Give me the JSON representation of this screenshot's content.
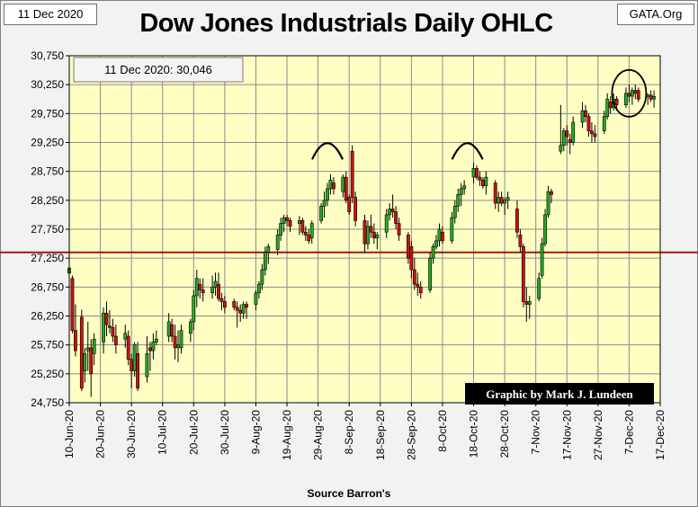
{
  "header": {
    "date": "11 Dec 2020",
    "site": "GATA.Org",
    "title": "Dow Jones Industrials Daily OHLC",
    "source": "Source Barron's"
  },
  "chart_data": {
    "type": "candlestick",
    "title": "Dow Jones Industrials Daily OHLC",
    "annotation_box": "11 Dec 2020:  30,046",
    "credit": "Graphic by Mark J. Lundeen",
    "ylim": [
      24750,
      30750
    ],
    "ytick_values": [
      24750,
      25250,
      25750,
      26250,
      26750,
      27250,
      27750,
      28250,
      28750,
      29250,
      29750,
      30250,
      30750
    ],
    "ytick_labels": [
      "24,750",
      "25,250",
      "25,750",
      "26,250",
      "26,750",
      "27,250",
      "27,750",
      "28,250",
      "28,750",
      "29,250",
      "29,750",
      "30,250",
      "30,750"
    ],
    "xlim_days": [
      0,
      190
    ],
    "xtick_days": [
      0,
      10,
      20,
      30,
      40,
      50,
      60,
      70,
      80,
      90,
      100,
      110,
      120,
      130,
      140,
      150,
      160,
      170,
      180,
      190
    ],
    "xtick_labels": [
      "10-Jun-20",
      "20-Jun-20",
      "30-Jun-20",
      "10-Jul-20",
      "20-Jul-20",
      "30-Jul-20",
      "9-Aug-20",
      "19-Aug-20",
      "29-Aug-20",
      "8-Sep-20",
      "18-Sep-20",
      "28-Sep-20",
      "8-Oct-20",
      "18-Oct-20",
      "28-Oct-20",
      "7-Nov-20",
      "17-Nov-20",
      "27-Nov-20",
      "7-Dec-20",
      "17-Dec-20"
    ],
    "reference_line": {
      "value": 27350,
      "color": "#a01818"
    },
    "colors": {
      "up": "#22aa22",
      "down": "#cc1111",
      "wick": "#000000",
      "plot_bg": "#ffffc4",
      "grid": "#8a8a8a"
    },
    "peaks_marked": [
      83,
      128
    ],
    "circled_region_day": 180,
    "candles": [
      {
        "d": 0,
        "o": 26989,
        "h": 27250,
        "l": 26950,
        "c": 27080
      },
      {
        "d": 1,
        "o": 26900,
        "h": 26950,
        "l": 25950,
        "c": 26000
      },
      {
        "d": 2,
        "o": 26000,
        "h": 26450,
        "l": 25550,
        "c": 25650
      },
      {
        "d": 4,
        "o": 26230,
        "h": 26360,
        "l": 24950,
        "c": 25000
      },
      {
        "d": 5,
        "o": 25300,
        "h": 25700,
        "l": 25100,
        "c": 25600
      },
      {
        "d": 6,
        "o": 25650,
        "h": 26150,
        "l": 25300,
        "c": 25700
      },
      {
        "d": 7,
        "o": 25700,
        "h": 25850,
        "l": 24850,
        "c": 25250
      },
      {
        "d": 8,
        "o": 25600,
        "h": 25950,
        "l": 25400,
        "c": 25850
      },
      {
        "d": 11,
        "o": 25800,
        "h": 26400,
        "l": 25600,
        "c": 26300
      },
      {
        "d": 12,
        "o": 26300,
        "h": 26500,
        "l": 25900,
        "c": 26100
      },
      {
        "d": 13,
        "o": 26080,
        "h": 26350,
        "l": 25950,
        "c": 26050
      },
      {
        "d": 14,
        "o": 26050,
        "h": 26200,
        "l": 25800,
        "c": 25900
      },
      {
        "d": 15,
        "o": 25900,
        "h": 26100,
        "l": 25600,
        "c": 25750
      },
      {
        "d": 18,
        "o": 25850,
        "h": 26100,
        "l": 25700,
        "c": 25950
      },
      {
        "d": 19,
        "o": 25900,
        "h": 26000,
        "l": 25400,
        "c": 25500
      },
      {
        "d": 20,
        "o": 25500,
        "h": 25600,
        "l": 25000,
        "c": 25300
      },
      {
        "d": 21,
        "o": 25300,
        "h": 25800,
        "l": 25200,
        "c": 25750
      },
      {
        "d": 22,
        "o": 25600,
        "h": 25800,
        "l": 24950,
        "c": 25000
      },
      {
        "d": 25,
        "o": 25200,
        "h": 25900,
        "l": 25100,
        "c": 25600
      },
      {
        "d": 26,
        "o": 25700,
        "h": 25800,
        "l": 25300,
        "c": 25650
      },
      {
        "d": 27,
        "o": 25650,
        "h": 25950,
        "l": 25500,
        "c": 25800
      },
      {
        "d": 28,
        "o": 25800,
        "h": 26000,
        "l": 25750,
        "c": 25850
      },
      {
        "d": 32,
        "o": 25900,
        "h": 26300,
        "l": 25800,
        "c": 26150
      },
      {
        "d": 33,
        "o": 26100,
        "h": 26200,
        "l": 25800,
        "c": 25900
      },
      {
        "d": 34,
        "o": 25900,
        "h": 26100,
        "l": 25500,
        "c": 25700
      },
      {
        "d": 35,
        "o": 25700,
        "h": 26000,
        "l": 25450,
        "c": 25750
      },
      {
        "d": 36,
        "o": 25700,
        "h": 26100,
        "l": 25600,
        "c": 26000
      },
      {
        "d": 39,
        "o": 25950,
        "h": 26200,
        "l": 25800,
        "c": 26150
      },
      {
        "d": 40,
        "o": 26150,
        "h": 26700,
        "l": 26000,
        "c": 26600
      },
      {
        "d": 41,
        "o": 26600,
        "h": 27050,
        "l": 26400,
        "c": 26900
      },
      {
        "d": 42,
        "o": 26800,
        "h": 26900,
        "l": 26550,
        "c": 26700
      },
      {
        "d": 43,
        "o": 26700,
        "h": 26900,
        "l": 26500,
        "c": 26650
      },
      {
        "d": 46,
        "o": 26650,
        "h": 26950,
        "l": 26550,
        "c": 26750
      },
      {
        "d": 47,
        "o": 26750,
        "h": 27000,
        "l": 26600,
        "c": 26850
      },
      {
        "d": 48,
        "o": 26800,
        "h": 27000,
        "l": 26500,
        "c": 26550
      },
      {
        "d": 49,
        "o": 26550,
        "h": 26650,
        "l": 26350,
        "c": 26500
      },
      {
        "d": 50,
        "o": 26500,
        "h": 26600,
        "l": 26300,
        "c": 26400
      },
      {
        "d": 53,
        "o": 26500,
        "h": 26550,
        "l": 26350,
        "c": 26400
      },
      {
        "d": 54,
        "o": 26400,
        "h": 26500,
        "l": 26050,
        "c": 26350
      },
      {
        "d": 55,
        "o": 26350,
        "h": 26450,
        "l": 26150,
        "c": 26300
      },
      {
        "d": 56,
        "o": 26300,
        "h": 26500,
        "l": 26200,
        "c": 26450
      },
      {
        "d": 57,
        "o": 26450,
        "h": 26500,
        "l": 26200,
        "c": 26400
      },
      {
        "d": 60,
        "o": 26450,
        "h": 26700,
        "l": 26350,
        "c": 26650
      },
      {
        "d": 61,
        "o": 26650,
        "h": 26850,
        "l": 26550,
        "c": 26800
      },
      {
        "d": 62,
        "o": 26800,
        "h": 27150,
        "l": 26700,
        "c": 27050
      },
      {
        "d": 63,
        "o": 27050,
        "h": 27450,
        "l": 26950,
        "c": 27350
      },
      {
        "d": 64,
        "o": 27350,
        "h": 27500,
        "l": 27150,
        "c": 27450
      },
      {
        "d": 67,
        "o": 27400,
        "h": 27750,
        "l": 27300,
        "c": 27650
      },
      {
        "d": 68,
        "o": 27650,
        "h": 27950,
        "l": 27550,
        "c": 27850
      },
      {
        "d": 69,
        "o": 27850,
        "h": 28000,
        "l": 27700,
        "c": 27950
      },
      {
        "d": 70,
        "o": 27950,
        "h": 28000,
        "l": 27800,
        "c": 27900
      },
      {
        "d": 71,
        "o": 27900,
        "h": 27950,
        "l": 27700,
        "c": 27800
      },
      {
        "d": 74,
        "o": 27850,
        "h": 27980,
        "l": 27650,
        "c": 27900
      },
      {
        "d": 75,
        "o": 27900,
        "h": 27950,
        "l": 27650,
        "c": 27700
      },
      {
        "d": 76,
        "o": 27700,
        "h": 27800,
        "l": 27550,
        "c": 27650
      },
      {
        "d": 77,
        "o": 27650,
        "h": 27750,
        "l": 27500,
        "c": 27550
      },
      {
        "d": 78,
        "o": 27600,
        "h": 27900,
        "l": 27500,
        "c": 27850
      },
      {
        "d": 81,
        "o": 27900,
        "h": 28200,
        "l": 27850,
        "c": 28150
      },
      {
        "d": 82,
        "o": 28150,
        "h": 28400,
        "l": 27950,
        "c": 28250
      },
      {
        "d": 83,
        "o": 28250,
        "h": 28550,
        "l": 28150,
        "c": 28450
      },
      {
        "d": 84,
        "o": 28450,
        "h": 28700,
        "l": 28350,
        "c": 28600
      },
      {
        "d": 85,
        "o": 28550,
        "h": 28650,
        "l": 28350,
        "c": 28450
      },
      {
        "d": 88,
        "o": 28400,
        "h": 28700,
        "l": 28300,
        "c": 28650
      },
      {
        "d": 89,
        "o": 28650,
        "h": 28750,
        "l": 28200,
        "c": 28250
      },
      {
        "d": 90,
        "o": 28300,
        "h": 28350,
        "l": 28000,
        "c": 28050
      },
      {
        "d": 91,
        "o": 29100,
        "h": 29200,
        "l": 28200,
        "c": 28300
      },
      {
        "d": 92,
        "o": 28300,
        "h": 28400,
        "l": 27800,
        "c": 27900
      },
      {
        "d": 95,
        "o": 27900,
        "h": 28000,
        "l": 27350,
        "c": 27500
      },
      {
        "d": 96,
        "o": 27500,
        "h": 27900,
        "l": 27400,
        "c": 27800
      },
      {
        "d": 97,
        "o": 27800,
        "h": 28000,
        "l": 27600,
        "c": 27700
      },
      {
        "d": 98,
        "o": 27700,
        "h": 27850,
        "l": 27500,
        "c": 27600
      },
      {
        "d": 99,
        "o": 27600,
        "h": 27700,
        "l": 27400,
        "c": 27650
      },
      {
        "d": 102,
        "o": 27700,
        "h": 28100,
        "l": 27600,
        "c": 28000
      },
      {
        "d": 103,
        "o": 28000,
        "h": 28200,
        "l": 27900,
        "c": 28100
      },
      {
        "d": 104,
        "o": 28100,
        "h": 28350,
        "l": 27950,
        "c": 28050
      },
      {
        "d": 105,
        "o": 28050,
        "h": 28150,
        "l": 27750,
        "c": 27850
      },
      {
        "d": 106,
        "o": 27850,
        "h": 27950,
        "l": 27550,
        "c": 27650
      },
      {
        "d": 109,
        "o": 27650,
        "h": 27700,
        "l": 27150,
        "c": 27250
      },
      {
        "d": 110,
        "o": 27450,
        "h": 27550,
        "l": 26900,
        "c": 27050
      },
      {
        "d": 111,
        "o": 27050,
        "h": 27250,
        "l": 26700,
        "c": 26800
      },
      {
        "d": 112,
        "o": 26800,
        "h": 27000,
        "l": 26600,
        "c": 26750
      },
      {
        "d": 113,
        "o": 26750,
        "h": 26850,
        "l": 26550,
        "c": 26650
      },
      {
        "d": 116,
        "o": 26700,
        "h": 27350,
        "l": 26650,
        "c": 27250
      },
      {
        "d": 117,
        "o": 27250,
        "h": 27500,
        "l": 27150,
        "c": 27450
      },
      {
        "d": 118,
        "o": 27450,
        "h": 27650,
        "l": 27400,
        "c": 27550
      },
      {
        "d": 119,
        "o": 27550,
        "h": 27850,
        "l": 27450,
        "c": 27750
      },
      {
        "d": 120,
        "o": 27700,
        "h": 27800,
        "l": 27500,
        "c": 27550
      },
      {
        "d": 123,
        "o": 27550,
        "h": 28050,
        "l": 27500,
        "c": 27950
      },
      {
        "d": 124,
        "o": 27950,
        "h": 28250,
        "l": 27850,
        "c": 28150
      },
      {
        "d": 125,
        "o": 28150,
        "h": 28450,
        "l": 28050,
        "c": 28350
      },
      {
        "d": 126,
        "o": 28350,
        "h": 28550,
        "l": 28150,
        "c": 28450
      },
      {
        "d": 127,
        "o": 28450,
        "h": 28600,
        "l": 28350,
        "c": 28500
      },
      {
        "d": 130,
        "o": 28650,
        "h": 28900,
        "l": 28550,
        "c": 28800
      },
      {
        "d": 131,
        "o": 28800,
        "h": 28850,
        "l": 28600,
        "c": 28650
      },
      {
        "d": 132,
        "o": 28650,
        "h": 28750,
        "l": 28500,
        "c": 28600
      },
      {
        "d": 133,
        "o": 28600,
        "h": 28650,
        "l": 28450,
        "c": 28500
      },
      {
        "d": 134,
        "o": 28500,
        "h": 28750,
        "l": 28350,
        "c": 28650
      },
      {
        "d": 137,
        "o": 28550,
        "h": 28600,
        "l": 28100,
        "c": 28200
      },
      {
        "d": 138,
        "o": 28200,
        "h": 28400,
        "l": 28050,
        "c": 28300
      },
      {
        "d": 139,
        "o": 28300,
        "h": 28400,
        "l": 28150,
        "c": 28200
      },
      {
        "d": 140,
        "o": 28200,
        "h": 28300,
        "l": 28000,
        "c": 28250
      },
      {
        "d": 141,
        "o": 28250,
        "h": 28400,
        "l": 28100,
        "c": 28300
      },
      {
        "d": 144,
        "o": 28100,
        "h": 28250,
        "l": 27600,
        "c": 27700
      },
      {
        "d": 145,
        "o": 27650,
        "h": 27750,
        "l": 27350,
        "c": 27450
      },
      {
        "d": 146,
        "o": 27450,
        "h": 27500,
        "l": 26400,
        "c": 26500
      },
      {
        "d": 147,
        "o": 26500,
        "h": 26750,
        "l": 26150,
        "c": 26450
      },
      {
        "d": 148,
        "o": 26450,
        "h": 26600,
        "l": 26200,
        "c": 26500
      },
      {
        "d": 151,
        "o": 26550,
        "h": 27000,
        "l": 26500,
        "c": 26900
      },
      {
        "d": 152,
        "o": 26950,
        "h": 27600,
        "l": 26900,
        "c": 27500
      },
      {
        "d": 153,
        "o": 27500,
        "h": 28100,
        "l": 27450,
        "c": 28000
      },
      {
        "d": 154,
        "o": 28000,
        "h": 28500,
        "l": 27950,
        "c": 28400
      },
      {
        "d": 155,
        "o": 28400,
        "h": 28450,
        "l": 28200,
        "c": 28350
      },
      {
        "d": 158,
        "o": 29100,
        "h": 29900,
        "l": 29050,
        "c": 29200
      },
      {
        "d": 159,
        "o": 29200,
        "h": 29500,
        "l": 29100,
        "c": 29450
      },
      {
        "d": 160,
        "o": 29450,
        "h": 29550,
        "l": 29200,
        "c": 29350
      },
      {
        "d": 161,
        "o": 29300,
        "h": 29400,
        "l": 29050,
        "c": 29250
      },
      {
        "d": 162,
        "o": 29250,
        "h": 29700,
        "l": 29200,
        "c": 29600
      },
      {
        "d": 165,
        "o": 29600,
        "h": 29950,
        "l": 29500,
        "c": 29800
      },
      {
        "d": 166,
        "o": 29800,
        "h": 29900,
        "l": 29600,
        "c": 29700
      },
      {
        "d": 167,
        "o": 29700,
        "h": 29750,
        "l": 29350,
        "c": 29450
      },
      {
        "d": 168,
        "o": 29450,
        "h": 29600,
        "l": 29250,
        "c": 29400
      },
      {
        "d": 169,
        "o": 29400,
        "h": 29550,
        "l": 29250,
        "c": 29350
      },
      {
        "d": 172,
        "o": 29450,
        "h": 29800,
        "l": 29400,
        "c": 29700
      },
      {
        "d": 173,
        "o": 29700,
        "h": 30100,
        "l": 29650,
        "c": 30000
      },
      {
        "d": 174,
        "o": 29950,
        "h": 30050,
        "l": 29750,
        "c": 29850
      },
      {
        "d": 175,
        "o": 29850,
        "h": 30100,
        "l": 29800,
        "c": 30000
      },
      {
        "d": 176,
        "o": 30000,
        "h": 30050,
        "l": 29800,
        "c": 29900
      },
      {
        "d": 179,
        "o": 29900,
        "h": 30200,
        "l": 29850,
        "c": 30100
      },
      {
        "d": 180,
        "o": 30100,
        "h": 30250,
        "l": 29950,
        "c": 30050
      },
      {
        "d": 181,
        "o": 30050,
        "h": 30200,
        "l": 29900,
        "c": 30150
      },
      {
        "d": 182,
        "o": 30150,
        "h": 30250,
        "l": 30000,
        "c": 30100
      },
      {
        "d": 183,
        "o": 30150,
        "h": 30200,
        "l": 29950,
        "c": 30000
      },
      {
        "d": 186,
        "o": 30050,
        "h": 30100,
        "l": 29900,
        "c": 30068
      },
      {
        "d": 187,
        "o": 30068,
        "h": 30150,
        "l": 29950,
        "c": 30000
      },
      {
        "d": 188,
        "o": 30000,
        "h": 30150,
        "l": 29850,
        "c": 30046
      }
    ]
  }
}
